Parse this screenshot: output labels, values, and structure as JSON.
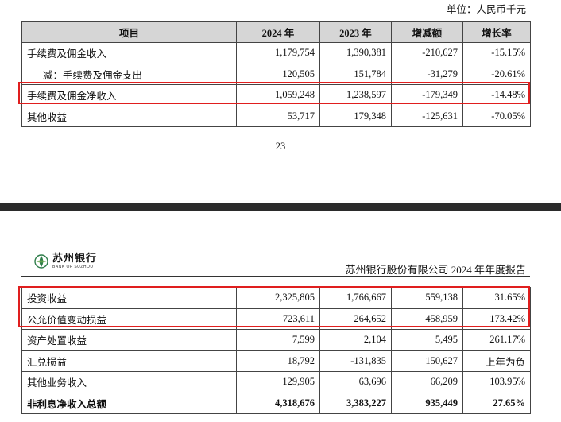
{
  "top": {
    "unit": "单位：人民币千元",
    "headers": [
      "项目",
      "2024 年",
      "2023 年",
      "增减额",
      "增长率"
    ],
    "rows": [
      {
        "label": "手续费及佣金收入",
        "v2024": "1,179,754",
        "v2023": "1,390,381",
        "change": "-210,627",
        "rate": "-15.15%"
      },
      {
        "label": "减：手续费及佣金支出",
        "v2024": "120,505",
        "v2023": "151,784",
        "change": "-31,279",
        "rate": "-20.61%"
      },
      {
        "label": "手续费及佣金净收入",
        "v2024": "1,059,248",
        "v2023": "1,238,597",
        "change": "-179,349",
        "rate": "-14.48%"
      },
      {
        "label": "其他收益",
        "v2024": "53,717",
        "v2023": "179,348",
        "change": "-125,631",
        "rate": "-70.05%"
      }
    ],
    "page_number": "23"
  },
  "bottom": {
    "logo_cn": "苏州银行",
    "logo_en": "BANK OF SUZHOU",
    "report_title": "苏州银行股份有限公司 2024 年年度报告",
    "rows": [
      {
        "label": "投资收益",
        "v2024": "2,325,805",
        "v2023": "1,766,667",
        "change": "559,138",
        "rate": "31.65%"
      },
      {
        "label": "公允价值变动损益",
        "v2024": "723,611",
        "v2023": "264,652",
        "change": "458,959",
        "rate": "173.42%"
      },
      {
        "label": "资产处置收益",
        "v2024": "7,599",
        "v2023": "2,104",
        "change": "5,495",
        "rate": "261.17%"
      },
      {
        "label": "汇兑损益",
        "v2024": "18,792",
        "v2023": "-131,835",
        "change": "150,627",
        "rate": "上年为负"
      },
      {
        "label": "其他业务收入",
        "v2024": "129,905",
        "v2023": "63,696",
        "change": "66,209",
        "rate": "103.95%"
      },
      {
        "label": "非利息净收入总额",
        "v2024": "4,318,676",
        "v2023": "3,383,227",
        "change": "935,449",
        "rate": "27.65%"
      }
    ]
  },
  "colors": {
    "highlight": "#e01e1e",
    "header_bg": "#d6d6d6",
    "separator": "#2b2b2b",
    "logo_green": "#2e7d4a"
  }
}
